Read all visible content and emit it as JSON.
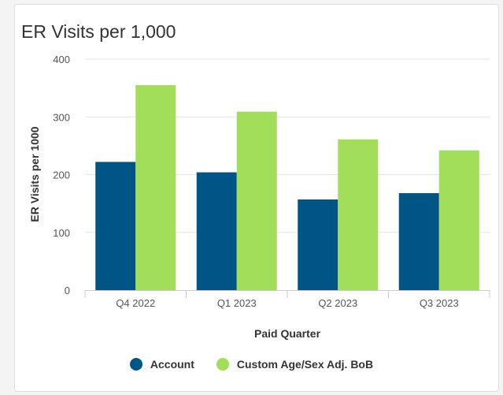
{
  "chart_data": {
    "type": "bar",
    "title": "ER Visits per 1,000",
    "xlabel": "Paid Quarter",
    "ylabel": "ER Visits per 1000",
    "categories": [
      "Q4 2022",
      "Q1 2023",
      "Q2 2023",
      "Q3 2023"
    ],
    "ylim": [
      0,
      400
    ],
    "yticks": [
      0,
      100,
      200,
      300,
      400
    ],
    "series": [
      {
        "name": "Account",
        "color": "#005587",
        "values": [
          222,
          204,
          157,
          168
        ]
      },
      {
        "name": "Custom Age/Sex Adj. BoB",
        "color": "#a3de5a",
        "values": [
          355,
          309,
          261,
          242
        ]
      }
    ],
    "grid": true,
    "legend_position": "bottom"
  }
}
